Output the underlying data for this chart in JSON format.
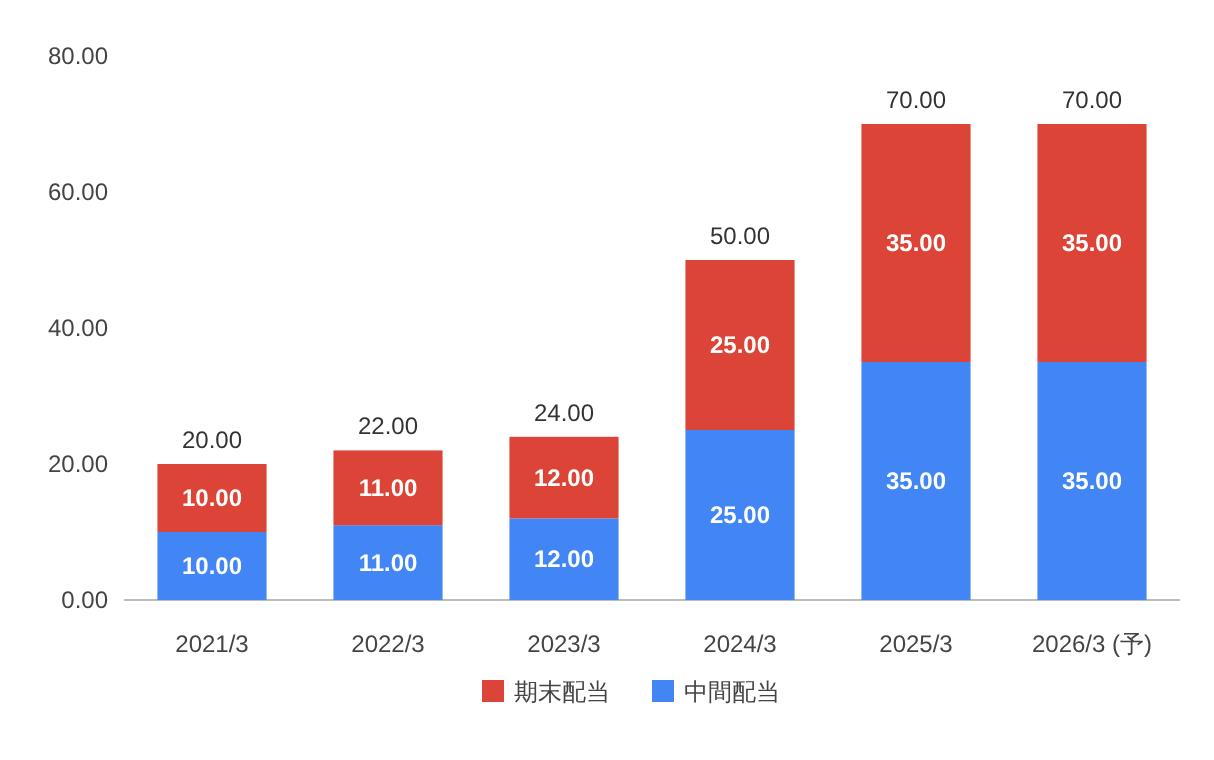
{
  "chart_data": {
    "type": "bar",
    "stacked": true,
    "legend": "bottom",
    "categories": [
      "2021/3",
      "2022/3",
      "2023/3",
      "2024/3",
      "2025/3",
      "2026/3 (予)"
    ],
    "series": [
      {
        "name": "中間配当",
        "color": "#4285f4",
        "values": [
          10,
          11,
          12,
          25,
          35,
          35
        ],
        "value_labels": [
          "10.00",
          "11.00",
          "12.00",
          "25.00",
          "35.00",
          "35.00"
        ]
      },
      {
        "name": "期末配当",
        "color": "#db4437",
        "values": [
          10,
          11,
          12,
          25,
          35,
          35
        ],
        "value_labels": [
          "10.00",
          "11.00",
          "12.00",
          "25.00",
          "35.00",
          "35.00"
        ]
      }
    ],
    "totals": [
      "20.00",
      "22.00",
      "24.00",
      "50.00",
      "70.00",
      "70.00"
    ],
    "ylim": [
      0,
      80
    ],
    "yticks": [
      {
        "value": 0,
        "label": "0.00"
      },
      {
        "value": 20,
        "label": "20.00"
      },
      {
        "value": 40,
        "label": "40.00"
      },
      {
        "value": 60,
        "label": "60.00"
      },
      {
        "value": 80,
        "label": "80.00"
      }
    ]
  }
}
